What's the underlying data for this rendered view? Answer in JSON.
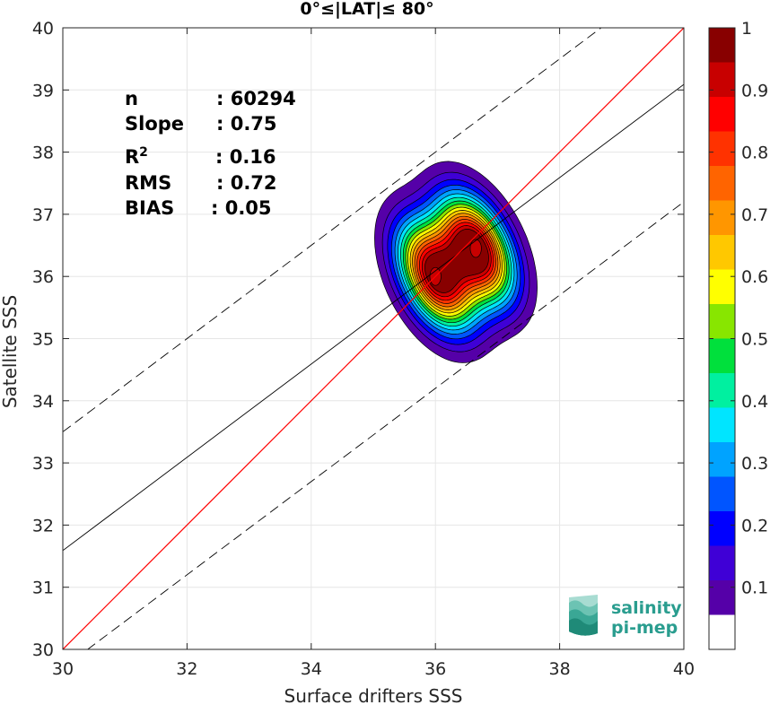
{
  "chart_data": {
    "type": "heatmap",
    "title": "0°≤|LAT|≤ 80°",
    "xlabel": "Surface drifters SSS",
    "ylabel": "Satellite SSS",
    "xlim": [
      30,
      40
    ],
    "ylim": [
      30,
      40
    ],
    "xticks": [
      "30",
      "32",
      "34",
      "36",
      "38",
      "40"
    ],
    "xtick_values": [
      30,
      32,
      34,
      36,
      38,
      40
    ],
    "yticks": [
      "30",
      "31",
      "32",
      "33",
      "34",
      "35",
      "36",
      "37",
      "38",
      "39",
      "40"
    ],
    "ytick_values": [
      30,
      31,
      32,
      33,
      34,
      35,
      36,
      37,
      38,
      39,
      40
    ],
    "grid": true,
    "stats": [
      {
        "label": "n",
        "sep": ": ",
        "value": "60294"
      },
      {
        "label": "Slope",
        "sep": ": ",
        "value": "0.75"
      },
      {
        "label": "R",
        "sup": "2",
        "sep": ": ",
        "value": "0.16"
      },
      {
        "label": "RMS",
        "sep": ": ",
        "value": "0.72"
      },
      {
        "label": "BIAS",
        "sep": ": ",
        "value": "0.05"
      }
    ],
    "lines": {
      "identity": {
        "slope": 1.0,
        "intercept": 0.0,
        "color": "#ff0000"
      },
      "fit": {
        "slope": 0.75,
        "intercept": 9.09,
        "color": "#000000"
      },
      "upper_bound": {
        "slope": 0.75,
        "intercept": 11.0,
        "style": "dashed"
      },
      "lower_bound": {
        "slope": 0.75,
        "intercept": 7.2,
        "style": "dashed"
      }
    },
    "density_peaks": [
      {
        "x": 36.0,
        "y": 36.0
      },
      {
        "x": 36.65,
        "y": 36.45
      }
    ],
    "colorbar": {
      "min": 0,
      "max": 1,
      "tick_labels": [
        "0.1",
        "0.2",
        "0.3",
        "0.4",
        "0.5",
        "0.6",
        "0.7",
        "0.8",
        "0.9",
        "1"
      ],
      "tick_values": [
        0.1,
        0.2,
        0.3,
        0.4,
        0.5,
        0.6,
        0.7,
        0.8,
        0.9,
        1.0
      ],
      "colors": [
        "#ffffff",
        "#5500a8",
        "#3f00d6",
        "#0000ff",
        "#0055ff",
        "#00a3ff",
        "#00e5ff",
        "#00f0a0",
        "#00e03c",
        "#88e600",
        "#ffff00",
        "#ffc800",
        "#ff9600",
        "#ff6400",
        "#ff3200",
        "#ff0000",
        "#c80000",
        "#880000"
      ]
    },
    "contour_levels": [
      0.05,
      0.1,
      0.15,
      0.2,
      0.25,
      0.3,
      0.35,
      0.4,
      0.45,
      0.5,
      0.55,
      0.6,
      0.65,
      0.7,
      0.75,
      0.8,
      0.85
    ]
  },
  "logo": {
    "line1": "salinity",
    "line2": "pi-mep"
  }
}
